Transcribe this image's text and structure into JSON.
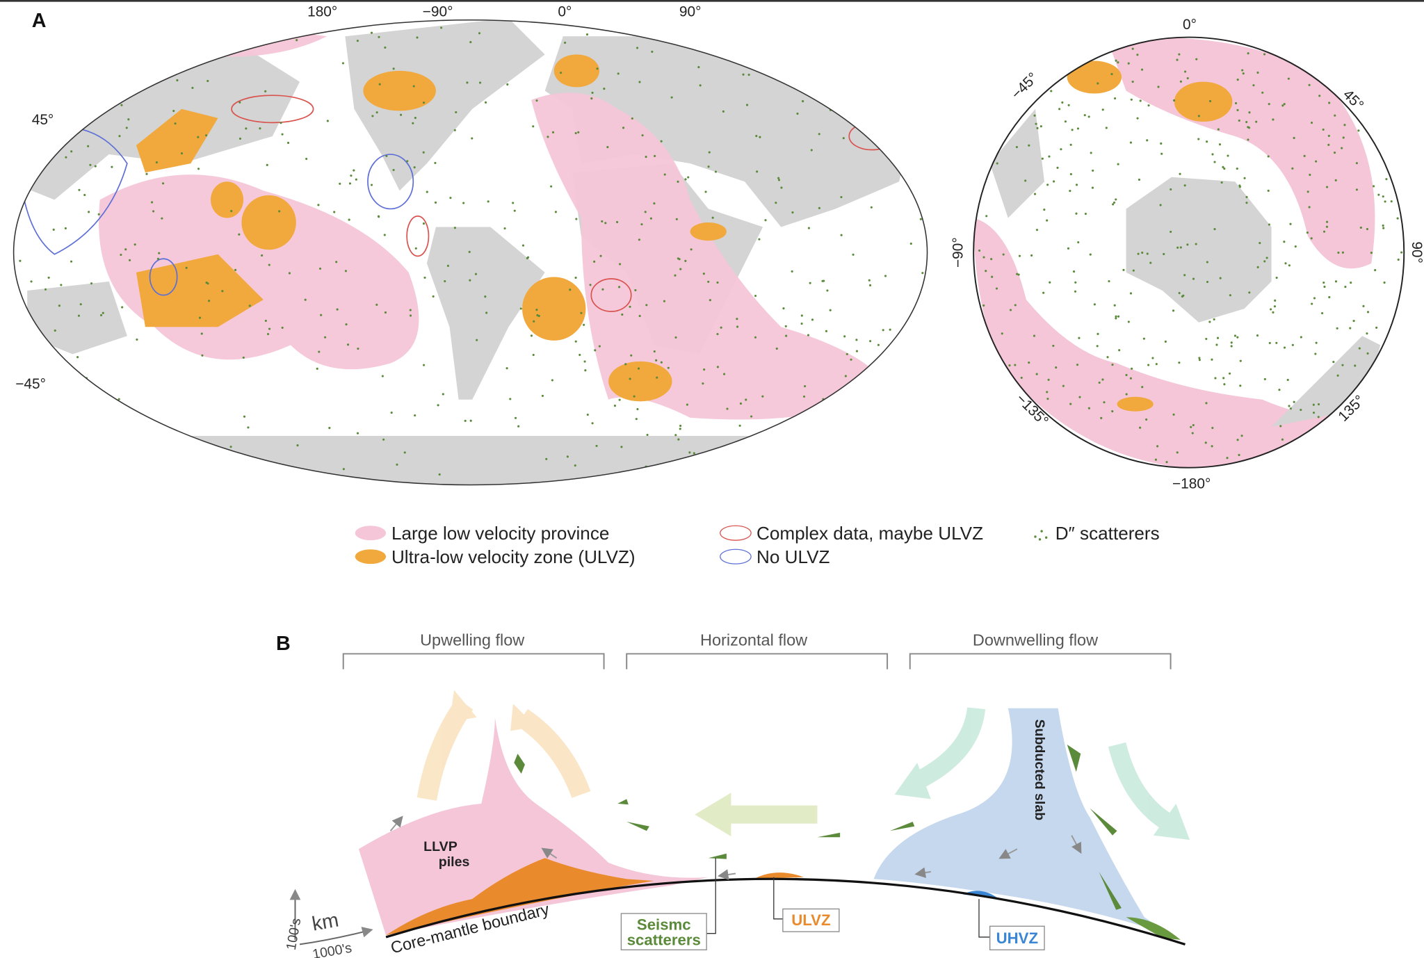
{
  "panel_a": {
    "label": "A",
    "map_top_ticks": [
      "180°",
      "−90°",
      "0°",
      "90°"
    ],
    "map_left_ticks": [
      "45°",
      "−45°"
    ],
    "polar_ticks": {
      "top": "0°",
      "right_upper": "45°",
      "right": "90°",
      "right_lower": "135°",
      "bottom": "−180°",
      "left_lower": "−135°",
      "left": "−90°",
      "left_upper": "−45°"
    }
  },
  "legend": {
    "llvp": "Large low velocity province",
    "ulvz": "Ultra-low velocity zone (ULVZ)",
    "complex": "Complex data, maybe ULVZ",
    "no_ulvz": "No ULVZ",
    "scatterers": "D″ scatterers"
  },
  "panel_b": {
    "label": "B",
    "flows": [
      "Upwelling flow",
      "Horizontal flow",
      "Downwelling flow"
    ],
    "llvp": [
      "LLVP",
      "piles"
    ],
    "slab": "Subducted slab",
    "cmb": "Core-mantle boundary",
    "scatterers": [
      "Seismc",
      "scatterers"
    ],
    "ulvz": "ULVZ",
    "uhvz": "UHVZ",
    "axis": {
      "vertical": "100's",
      "horizontal": "1000's",
      "unit": "km"
    }
  }
}
